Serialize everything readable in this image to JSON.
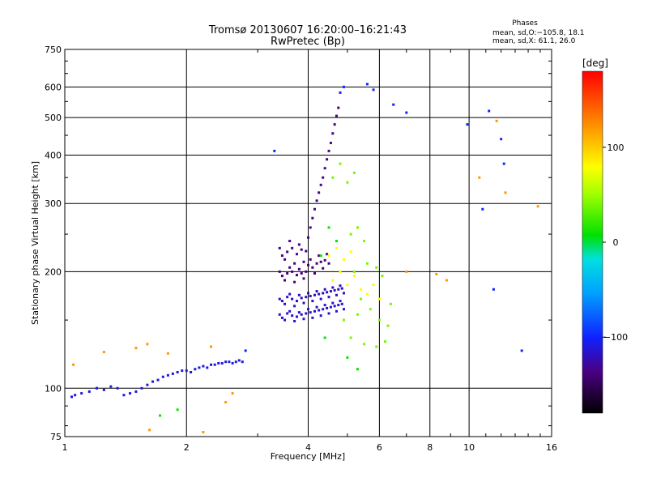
{
  "chart_data": {
    "type": "scatter",
    "title": "Tromsø 20130607 16:20:00–16:21:43",
    "subtitle": "RwPretec (Bp)",
    "xlabel": "Frequency [MHz]",
    "ylabel": "Stationary phase Virtual Height [km]",
    "xscale": "log",
    "yscale": "log",
    "xlim": [
      1,
      16
    ],
    "ylim": [
      75,
      750
    ],
    "x_ticks": [
      1,
      2,
      4,
      6,
      8,
      10,
      16
    ],
    "x_tick_labels": [
      "1",
      "2",
      "4",
      "6",
      "8",
      "10",
      "16"
    ],
    "y_ticks": [
      75,
      100,
      200,
      300,
      400,
      500,
      600,
      750
    ],
    "y_tick_labels": [
      "75",
      "100",
      "200",
      "300",
      "400",
      "500",
      "600",
      "750"
    ],
    "grid": true,
    "phases_box": {
      "title": "Phases",
      "line1": "mean, sd,O:−105.8, 18.1",
      "line2": "mean, sd,X:  61.1, 26.0"
    },
    "colorbar": {
      "label": "[deg]",
      "range": [
        -180,
        180
      ],
      "tick_values": [
        100,
        0,
        -100
      ],
      "tick_labels": [
        "100",
        "0",
        "−100"
      ]
    },
    "traces": [
      {
        "phase_deg": -110,
        "points": [
          [
            1.04,
            95
          ],
          [
            1.06,
            96
          ],
          [
            1.1,
            97
          ],
          [
            1.15,
            98
          ],
          [
            1.2,
            100
          ],
          [
            1.25,
            99
          ],
          [
            1.3,
            101
          ],
          [
            1.35,
            100
          ],
          [
            1.4,
            96
          ],
          [
            1.45,
            97
          ],
          [
            1.5,
            98
          ],
          [
            1.55,
            100
          ],
          [
            1.6,
            102
          ],
          [
            1.65,
            104
          ],
          [
            1.7,
            105
          ],
          [
            1.75,
            107
          ],
          [
            1.8,
            108
          ],
          [
            1.85,
            109
          ],
          [
            1.9,
            110
          ],
          [
            1.95,
            111
          ],
          [
            2.0,
            111
          ],
          [
            2.05,
            110
          ],
          [
            2.1,
            112
          ],
          [
            2.15,
            113
          ],
          [
            2.2,
            114
          ],
          [
            2.25,
            113
          ],
          [
            2.3,
            115
          ],
          [
            2.35,
            115
          ],
          [
            2.4,
            116
          ],
          [
            2.45,
            116
          ],
          [
            2.5,
            117
          ],
          [
            2.55,
            117
          ],
          [
            2.6,
            116
          ],
          [
            2.65,
            117
          ],
          [
            2.7,
            118
          ],
          [
            2.75,
            117
          ]
        ]
      },
      {
        "phase_deg": -135,
        "points": [
          [
            3.4,
            230
          ],
          [
            3.45,
            220
          ],
          [
            3.5,
            215
          ],
          [
            3.55,
            225
          ],
          [
            3.6,
            240
          ],
          [
            3.65,
            230
          ],
          [
            3.7,
            210
          ],
          [
            3.75,
            222
          ],
          [
            3.8,
            235
          ],
          [
            3.85,
            228
          ],
          [
            3.9,
            212
          ],
          [
            3.95,
            226
          ],
          [
            4.0,
            245
          ],
          [
            4.05,
            260
          ],
          [
            4.1,
            275
          ],
          [
            4.15,
            290
          ],
          [
            4.2,
            305
          ],
          [
            4.25,
            320
          ],
          [
            4.3,
            335
          ],
          [
            4.35,
            350
          ],
          [
            4.4,
            370
          ],
          [
            4.45,
            390
          ],
          [
            4.5,
            410
          ],
          [
            4.55,
            430
          ],
          [
            4.6,
            455
          ],
          [
            4.65,
            480
          ],
          [
            4.7,
            505
          ],
          [
            4.75,
            530
          ]
        ]
      },
      {
        "phase_deg": -140,
        "points": [
          [
            3.4,
            200
          ],
          [
            3.45,
            195
          ],
          [
            3.5,
            190
          ],
          [
            3.55,
            198
          ],
          [
            3.6,
            205
          ],
          [
            3.65,
            200
          ],
          [
            3.7,
            188
          ],
          [
            3.75,
            196
          ],
          [
            3.8,
            203
          ],
          [
            3.85,
            198
          ],
          [
            3.9,
            192
          ],
          [
            3.95,
            200
          ],
          [
            4.0,
            208
          ],
          [
            4.05,
            215
          ],
          [
            4.1,
            205
          ],
          [
            4.15,
            198
          ],
          [
            4.2,
            210
          ],
          [
            4.25,
            220
          ],
          [
            4.3,
            212
          ],
          [
            4.35,
            204
          ],
          [
            4.4,
            214
          ],
          [
            4.45,
            222
          ],
          [
            4.5,
            210
          ]
        ]
      },
      {
        "phase_deg": -120,
        "points": [
          [
            3.4,
            170
          ],
          [
            3.45,
            168
          ],
          [
            3.5,
            165
          ],
          [
            3.55,
            172
          ],
          [
            3.6,
            175
          ],
          [
            3.65,
            170
          ],
          [
            3.7,
            163
          ],
          [
            3.75,
            168
          ],
          [
            3.8,
            174
          ],
          [
            3.85,
            171
          ],
          [
            3.9,
            166
          ],
          [
            3.95,
            172
          ],
          [
            4.0,
            176
          ],
          [
            4.05,
            173
          ],
          [
            4.1,
            168
          ],
          [
            4.15,
            174
          ],
          [
            4.2,
            178
          ],
          [
            4.25,
            175
          ],
          [
            4.3,
            170
          ],
          [
            4.35,
            176
          ],
          [
            4.4,
            180
          ],
          [
            4.45,
            177
          ],
          [
            4.5,
            172
          ],
          [
            4.55,
            178
          ],
          [
            4.6,
            182
          ],
          [
            4.65,
            179
          ],
          [
            4.7,
            174
          ],
          [
            4.75,
            180
          ],
          [
            4.8,
            184
          ],
          [
            4.85,
            181
          ],
          [
            4.9,
            176
          ]
        ]
      },
      {
        "phase_deg": -115,
        "points": [
          [
            3.4,
            155
          ],
          [
            3.45,
            152
          ],
          [
            3.5,
            150
          ],
          [
            3.55,
            156
          ],
          [
            3.6,
            158
          ],
          [
            3.65,
            154
          ],
          [
            3.7,
            149
          ],
          [
            3.75,
            153
          ],
          [
            3.8,
            157
          ],
          [
            3.85,
            155
          ],
          [
            3.9,
            151
          ],
          [
            3.95,
            156
          ],
          [
            4.0,
            160
          ],
          [
            4.05,
            157
          ],
          [
            4.1,
            152
          ],
          [
            4.15,
            158
          ],
          [
            4.2,
            162
          ],
          [
            4.25,
            159
          ],
          [
            4.3,
            154
          ],
          [
            4.35,
            160
          ],
          [
            4.4,
            164
          ],
          [
            4.45,
            161
          ],
          [
            4.5,
            156
          ],
          [
            4.55,
            162
          ],
          [
            4.6,
            166
          ],
          [
            4.65,
            163
          ],
          [
            4.7,
            158
          ],
          [
            4.75,
            164
          ],
          [
            4.8,
            168
          ],
          [
            4.85,
            165
          ],
          [
            4.9,
            160
          ]
        ]
      },
      {
        "phase_deg": 40,
        "points": [
          [
            4.6,
            350
          ],
          [
            4.8,
            380
          ],
          [
            5.0,
            340
          ],
          [
            5.2,
            360
          ],
          [
            5.1,
            250
          ],
          [
            5.3,
            260
          ],
          [
            5.5,
            240
          ],
          [
            5.2,
            200
          ],
          [
            5.6,
            210
          ],
          [
            5.9,
            205
          ],
          [
            6.1,
            195
          ],
          [
            5.4,
            170
          ],
          [
            5.7,
            160
          ],
          [
            6.0,
            150
          ],
          [
            6.3,
            145
          ],
          [
            5.1,
            135
          ],
          [
            5.5,
            130
          ],
          [
            5.9,
            128
          ],
          [
            6.2,
            132
          ],
          [
            4.9,
            150
          ],
          [
            5.3,
            155
          ],
          [
            6.4,
            165
          ]
        ]
      },
      {
        "phase_deg": 80,
        "points": [
          [
            4.5,
            220
          ],
          [
            4.7,
            230
          ],
          [
            4.9,
            215
          ],
          [
            5.1,
            225
          ],
          [
            4.6,
            190
          ],
          [
            4.8,
            200
          ],
          [
            5.0,
            185
          ],
          [
            5.2,
            195
          ],
          [
            5.4,
            180
          ],
          [
            5.6,
            175
          ],
          [
            5.8,
            185
          ],
          [
            6.0,
            170
          ]
        ]
      },
      {
        "phase_deg": -100,
        "points": [
          [
            5.6,
            610
          ],
          [
            5.8,
            590
          ],
          [
            4.8,
            580
          ],
          [
            4.9,
            600
          ],
          [
            6.5,
            540
          ],
          [
            7.0,
            515
          ],
          [
            9.9,
            480
          ],
          [
            11.2,
            520
          ],
          [
            12.0,
            440
          ],
          [
            12.2,
            380
          ],
          [
            10.8,
            290
          ],
          [
            11.5,
            180
          ],
          [
            13.5,
            125
          ],
          [
            3.3,
            410
          ],
          [
            1.2,
            100
          ],
          [
            2.8,
            125
          ]
        ]
      },
      {
        "phase_deg": 120,
        "points": [
          [
            1.5,
            127
          ],
          [
            1.6,
            130
          ],
          [
            1.8,
            123
          ],
          [
            2.3,
            128
          ],
          [
            1.25,
            124
          ],
          [
            1.05,
            115
          ],
          [
            11.7,
            490
          ],
          [
            10.6,
            350
          ],
          [
            12.3,
            320
          ],
          [
            14.8,
            295
          ],
          [
            8.3,
            197
          ],
          [
            8.8,
            190
          ],
          [
            2.2,
            77
          ],
          [
            1.62,
            78
          ],
          [
            2.5,
            92
          ],
          [
            2.6,
            97
          ],
          [
            7.0,
            200
          ]
        ]
      },
      {
        "phase_deg": 10,
        "points": [
          [
            4.3,
            220
          ],
          [
            4.5,
            260
          ],
          [
            4.7,
            240
          ],
          [
            4.4,
            135
          ],
          [
            5.0,
            120
          ],
          [
            5.3,
            112
          ],
          [
            1.72,
            85
          ],
          [
            1.9,
            88
          ]
        ]
      }
    ]
  }
}
